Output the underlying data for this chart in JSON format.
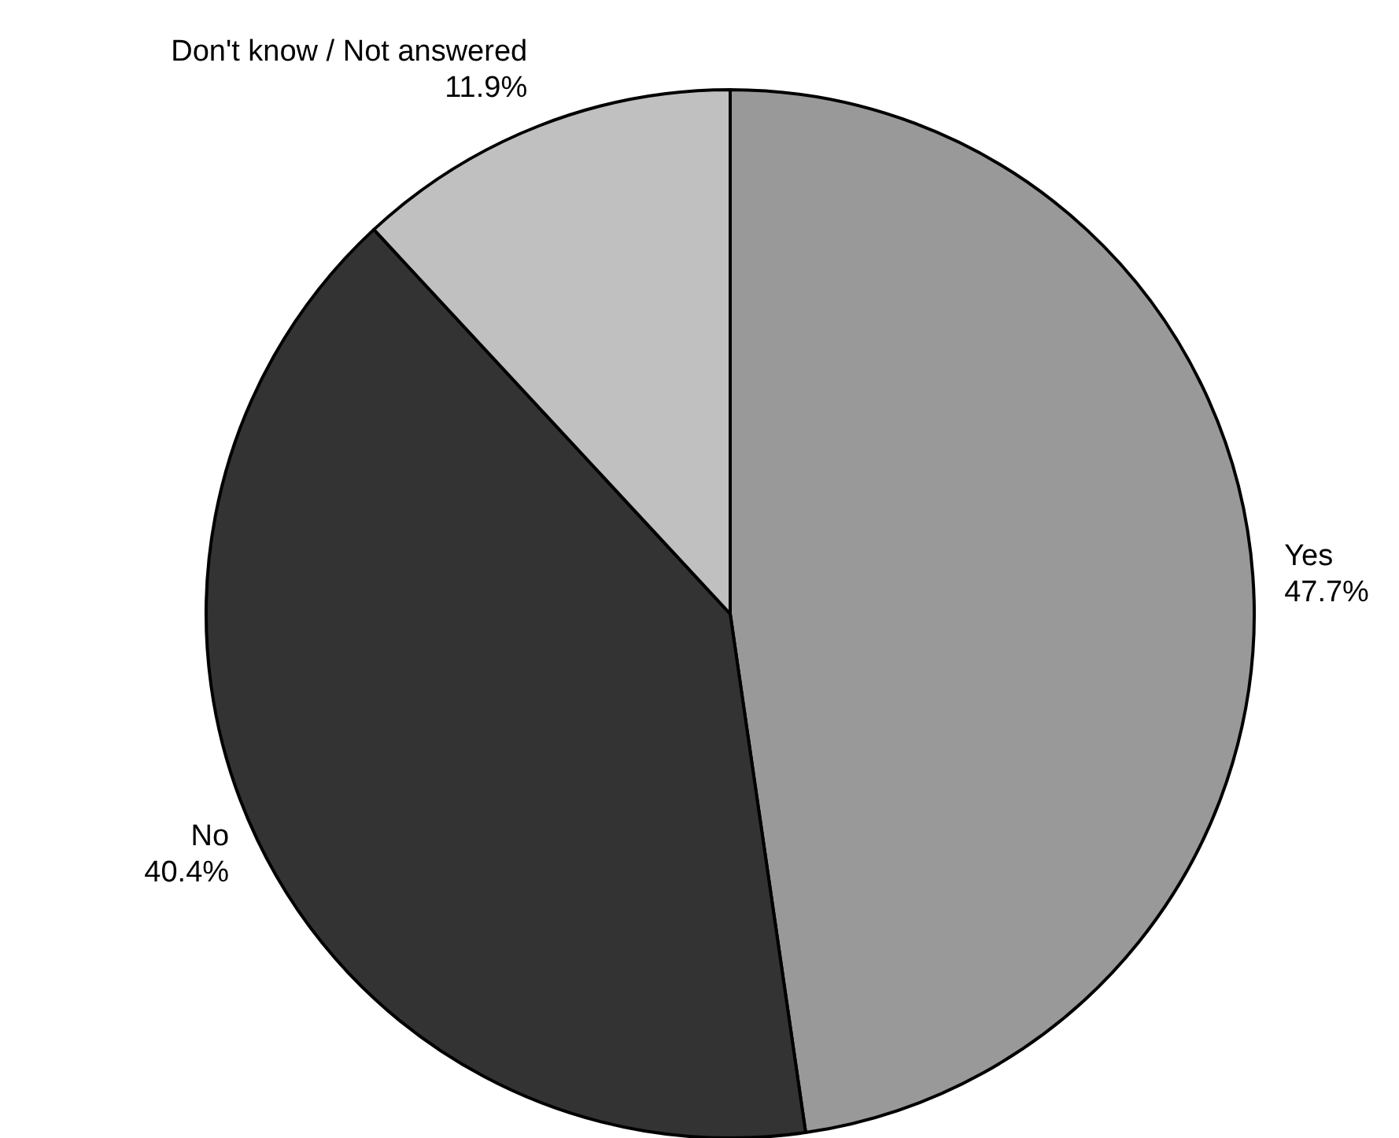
{
  "chart_data": {
    "type": "pie",
    "categories": [
      "Yes",
      "No",
      "Don't know / Not answered"
    ],
    "values": [
      47.7,
      40.4,
      11.9
    ],
    "value_labels": [
      "47.7%",
      "40.4%",
      "11.9%"
    ],
    "colors": [
      "#999999",
      "#333333",
      "#c0c0c0"
    ]
  }
}
